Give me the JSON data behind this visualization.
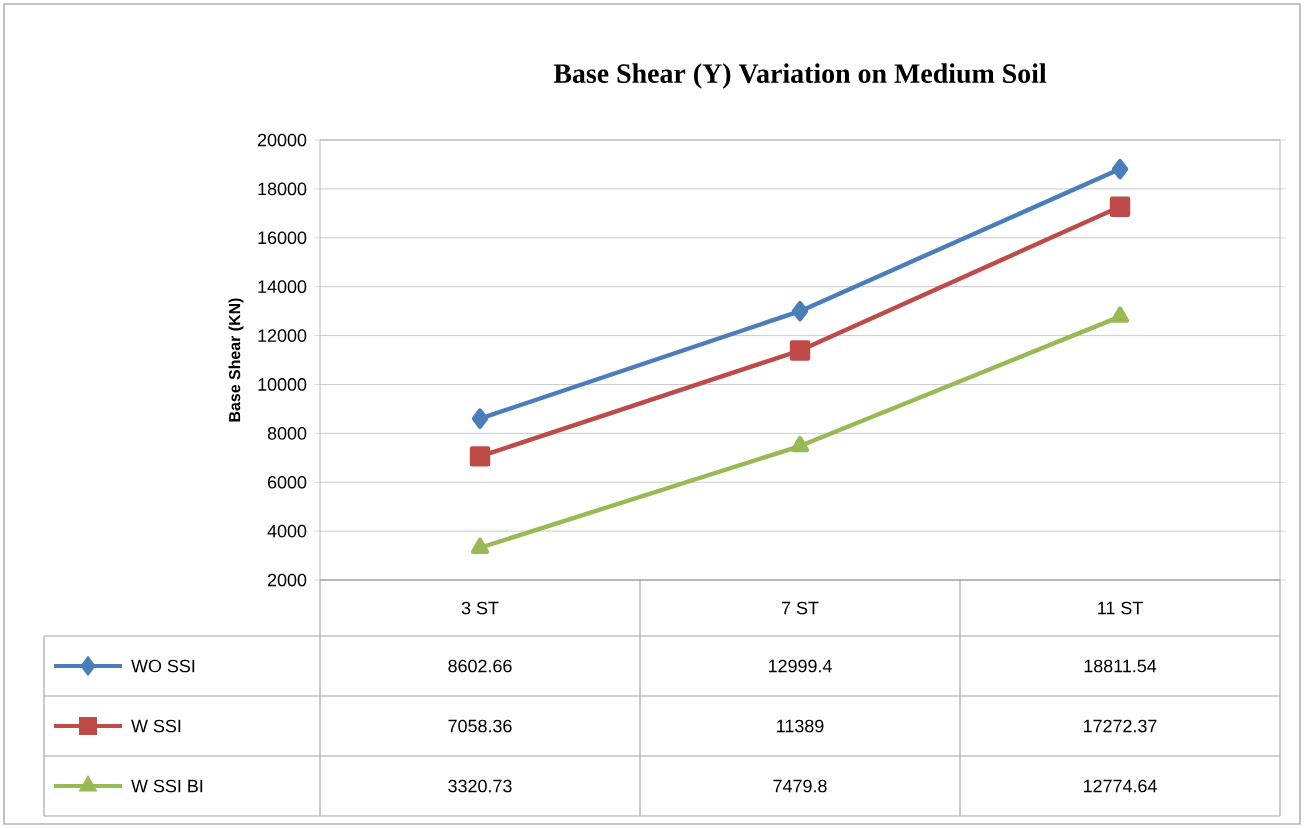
{
  "chart_data": {
    "type": "line",
    "title": "Base Shear (Y) Variation on Medium Soil",
    "ylabel": "Base Shear (KN)",
    "categories": [
      "3 ST",
      "7 ST",
      "11 ST"
    ],
    "series": [
      {
        "name": "WO SSI",
        "color": "#4a7ebb",
        "marker": "diamond",
        "values": [
          8602.66,
          12999.4,
          18811.54
        ]
      },
      {
        "name": "W SSI",
        "color": "#be4b48",
        "marker": "square",
        "values": [
          7058.36,
          11389,
          17272.37
        ]
      },
      {
        "name": "W SSI BI",
        "color": "#98b954",
        "marker": "triangle",
        "values": [
          3320.73,
          7479.8,
          12774.64
        ]
      }
    ],
    "ylim": [
      2000,
      20000
    ],
    "yticks": [
      2000,
      4000,
      6000,
      8000,
      10000,
      12000,
      14000,
      16000,
      18000,
      20000
    ],
    "grid": "y",
    "legend": "bottom left",
    "data_labels": true
  }
}
